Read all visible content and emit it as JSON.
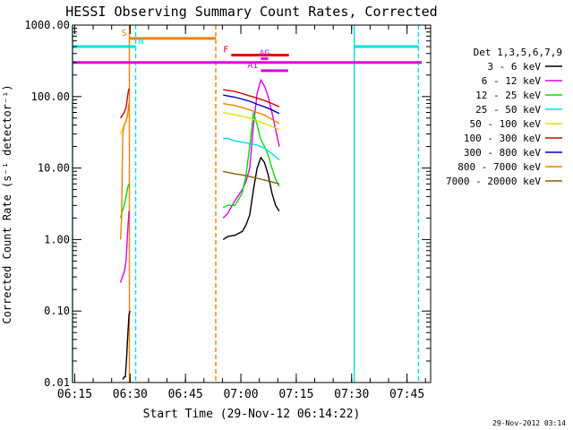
{
  "chart_data": {
    "type": "line",
    "title": "HESSI Observing Summary Count Rates, Corrected",
    "xlabel": "Start Time (29-Nov-12 06:14:22)",
    "ylabel": "Corrected Count Rate (s⁻¹ detector⁻¹)",
    "footer": "29-Nov-2012 03:14",
    "x_unit": "minutes after 06:14:22",
    "xlim": [
      0,
      97
    ],
    "ylim": [
      0.01,
      1000
    ],
    "y_scale": "log",
    "x_ticks": [
      {
        "x": 0.6,
        "label": "06:15"
      },
      {
        "x": 15.6,
        "label": "06:30"
      },
      {
        "x": 30.6,
        "label": "06:45"
      },
      {
        "x": 45.6,
        "label": "07:00"
      },
      {
        "x": 60.6,
        "label": "07:15"
      },
      {
        "x": 75.6,
        "label": "07:30"
      },
      {
        "x": 90.6,
        "label": "07:45"
      }
    ],
    "y_ticks": [
      {
        "y": 1000,
        "label": "1000.00"
      },
      {
        "y": 100,
        "label": "100.00"
      },
      {
        "y": 10,
        "label": "10.00"
      },
      {
        "y": 1,
        "label": "1.00"
      },
      {
        "y": 0.1,
        "label": "0.10"
      },
      {
        "y": 0.01,
        "label": "0.01"
      }
    ],
    "legend_title": "Det 1,3,5,6,7,9",
    "legend_position": "right",
    "series": [
      {
        "name": "3 - 6 keV",
        "color": "#000000",
        "segments": [
          [
            [
              13.6,
              0.011
            ],
            [
              14.0,
              0.012
            ],
            [
              14.3,
              0.012
            ],
            [
              14.6,
              0.02
            ],
            [
              15.0,
              0.05
            ],
            [
              15.3,
              0.09
            ],
            [
              15.6,
              0.1
            ]
          ],
          [
            [
              40.8,
              1.0
            ],
            [
              42.0,
              1.1
            ],
            [
              44.0,
              1.15
            ],
            [
              46.0,
              1.3
            ],
            [
              47.0,
              1.6
            ],
            [
              48.0,
              2.2
            ],
            [
              49.0,
              5.0
            ],
            [
              50.0,
              10.0
            ],
            [
              51.0,
              14.0
            ],
            [
              52.0,
              12.0
            ],
            [
              53.0,
              8.0
            ],
            [
              54.0,
              4.5
            ],
            [
              55.0,
              3.0
            ],
            [
              56.0,
              2.5
            ]
          ]
        ]
      },
      {
        "name": "6 - 12 keV",
        "color": "#e000e0",
        "segments": [
          [
            [
              13.0,
              0.25
            ],
            [
              13.5,
              0.3
            ],
            [
              14.0,
              0.35
            ],
            [
              14.5,
              0.5
            ],
            [
              15.0,
              1.5
            ],
            [
              15.3,
              2.5
            ]
          ],
          [
            [
              40.8,
              2.0
            ],
            [
              42.0,
              2.3
            ],
            [
              44.0,
              3.5
            ],
            [
              46.0,
              5.0
            ],
            [
              47.0,
              6.5
            ],
            [
              48.0,
              10.0
            ],
            [
              49.0,
              40.0
            ],
            [
              50.0,
              110.0
            ],
            [
              51.0,
              170.0
            ],
            [
              52.0,
              140.0
            ],
            [
              53.0,
              100.0
            ],
            [
              54.0,
              60.0
            ],
            [
              55.0,
              35.0
            ],
            [
              56.0,
              20.0
            ]
          ]
        ]
      },
      {
        "name": "12 - 25 keV",
        "color": "#00e000",
        "segments": [
          [
            [
              13.0,
              2.0
            ],
            [
              13.5,
              2.5
            ],
            [
              14.0,
              3.0
            ],
            [
              14.5,
              4.0
            ],
            [
              15.0,
              5.5
            ],
            [
              15.3,
              6.0
            ]
          ],
          [
            [
              40.8,
              2.8
            ],
            [
              42.0,
              3.0
            ],
            [
              44.0,
              3.0
            ],
            [
              46.0,
              4.5
            ],
            [
              47.0,
              8.0
            ],
            [
              48.0,
              20.0
            ],
            [
              49.0,
              60.0
            ],
            [
              50.0,
              40.0
            ],
            [
              51.0,
              25.0
            ],
            [
              52.0,
              20.0
            ],
            [
              53.0,
              15.0
            ],
            [
              54.0,
              10.0
            ],
            [
              55.0,
              7.0
            ],
            [
              56.0,
              5.5
            ]
          ]
        ]
      },
      {
        "name": "25 - 50 keV",
        "color": "#00e0e0",
        "segments": [
          [
            [
              40.8,
              26.0
            ],
            [
              42.0,
              26.0
            ],
            [
              44.0,
              24.0
            ],
            [
              46.0,
              23.0
            ],
            [
              48.0,
              22.0
            ],
            [
              50.0,
              21.0
            ],
            [
              52.0,
              19.0
            ],
            [
              54.0,
              16.0
            ],
            [
              56.0,
              13.0
            ]
          ]
        ]
      },
      {
        "name": "50 - 100 keV",
        "color": "#e0e000",
        "segments": [
          [
            [
              13.0,
              30.0
            ],
            [
              13.5,
              35.0
            ],
            [
              14.0,
              40.0
            ],
            [
              14.5,
              45.0
            ],
            [
              15.0,
              55.0
            ],
            [
              15.3,
              60.0
            ]
          ],
          [
            [
              40.8,
              60.0
            ],
            [
              42.0,
              58.0
            ],
            [
              44.0,
              56.0
            ],
            [
              46.0,
              53.0
            ],
            [
              48.0,
              50.0
            ],
            [
              50.0,
              46.0
            ],
            [
              52.0,
              42.0
            ],
            [
              54.0,
              38.0
            ],
            [
              56.0,
              35.0
            ]
          ]
        ]
      },
      {
        "name": "100 - 300 keV",
        "color": "#e00000",
        "segments": [
          [
            [
              13.0,
              50.0
            ],
            [
              13.5,
              55.0
            ],
            [
              14.0,
              60.0
            ],
            [
              14.5,
              70.0
            ],
            [
              15.0,
              110.0
            ],
            [
              15.3,
              130.0
            ]
          ],
          [
            [
              40.8,
              125.0
            ],
            [
              42.0,
              122.0
            ],
            [
              44.0,
              118.0
            ],
            [
              46.0,
              110.0
            ],
            [
              48.0,
              102.0
            ],
            [
              50.0,
              95.0
            ],
            [
              52.0,
              88.0
            ],
            [
              54.0,
              80.0
            ],
            [
              56.0,
              72.0
            ]
          ]
        ]
      },
      {
        "name": "300 - 800 keV",
        "color": "#0000c0",
        "segments": [
          [
            [
              40.8,
              105.0
            ],
            [
              42.0,
              102.0
            ],
            [
              44.0,
              98.0
            ],
            [
              46.0,
              92.0
            ],
            [
              48.0,
              86.0
            ],
            [
              50.0,
              78.0
            ],
            [
              52.0,
              72.0
            ],
            [
              54.0,
              65.0
            ],
            [
              56.0,
              58.0
            ]
          ]
        ]
      },
      {
        "name": "800 - 7000 keV",
        "color": "#f08000",
        "segments": [
          [
            [
              13.0,
              1.0
            ],
            [
              13.3,
              2.0
            ],
            [
              13.6,
              30.0
            ],
            [
              14.0,
              40.0
            ],
            [
              14.5,
              45.0
            ],
            [
              15.0,
              60.0
            ],
            [
              15.3,
              80.0
            ]
          ],
          [
            [
              40.8,
              80.0
            ],
            [
              42.0,
              78.0
            ],
            [
              44.0,
              75.0
            ],
            [
              46.0,
              70.0
            ],
            [
              48.0,
              65.0
            ],
            [
              50.0,
              60.0
            ],
            [
              52.0,
              55.0
            ],
            [
              54.0,
              48.0
            ],
            [
              56.0,
              42.0
            ]
          ]
        ]
      },
      {
        "name": "7000 - 20000 keV",
        "color": "#806000",
        "segments": [
          [
            [
              40.8,
              9.0
            ],
            [
              42.0,
              8.7
            ],
            [
              44.0,
              8.3
            ],
            [
              46.0,
              8.0
            ],
            [
              48.0,
              7.6
            ],
            [
              50.0,
              7.2
            ],
            [
              52.0,
              6.8
            ],
            [
              54.0,
              6.4
            ],
            [
              56.0,
              6.0
            ]
          ]
        ]
      }
    ],
    "vertical_lines": [
      {
        "x": 0.0,
        "color": "#00e0e0",
        "dashed": false
      },
      {
        "x": 15.4,
        "color": "#f08000",
        "dashed": false
      },
      {
        "x": 17.1,
        "color": "#00e0e0",
        "dashed": true
      },
      {
        "x": 38.8,
        "color": "#f08000",
        "dashed": true
      },
      {
        "x": 76.3,
        "color": "#00e0e0",
        "dashed": false
      },
      {
        "x": 93.7,
        "color": "#00e0e0",
        "dashed": true
      }
    ],
    "flag_bars": [
      {
        "label": "S",
        "color": "#f08000",
        "x0": 15.4,
        "x1": 38.8,
        "y": 650,
        "label_side": "left"
      },
      {
        "label": "N",
        "color": "#00e0e0",
        "x0": 0.0,
        "x1": 17.1,
        "y": 500,
        "label_side": "right"
      },
      {
        "label": "N",
        "color": "#00e0e0",
        "x0": 76.3,
        "x1": 93.7,
        "y": 500,
        "label_side": "none"
      },
      {
        "label": "F",
        "color": "#e00000",
        "x0": 43.0,
        "x1": 58.6,
        "y": 380,
        "label_side": "left"
      },
      {
        "label": "AG",
        "color": "#e000e0",
        "x0": 51.0,
        "x1": 53.0,
        "y": 340,
        "label_side": "center"
      },
      {
        "label": "A1",
        "color": "#e000e0",
        "x0": 51.0,
        "x1": 58.4,
        "y": 230,
        "label_side": "left"
      },
      {
        "label": "",
        "color": "#e000e0",
        "x0": 0.0,
        "x1": 94.6,
        "y": 300,
        "label_side": "none"
      }
    ]
  }
}
